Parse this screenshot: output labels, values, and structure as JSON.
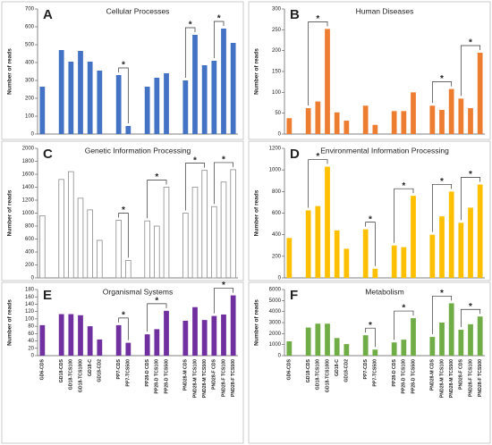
{
  "chart_data": [
    {
      "type": "bar",
      "label": "A",
      "title": "Cellular Processes",
      "y_label": "Number of reads",
      "color": "#4472c4",
      "values": [
        265,
        null,
        470,
        405,
        465,
        405,
        355,
        null,
        330,
        45,
        null,
        265,
        315,
        340,
        null,
        300,
        555,
        385,
        410,
        590,
        510
      ],
      "ylim": [
        0,
        700
      ],
      "yticks": [
        0,
        100,
        200,
        300,
        400,
        500,
        600,
        700
      ],
      "annotations": [
        {
          "text": "*",
          "from": 8,
          "to": 9
        },
        {
          "text": "*",
          "from": 15,
          "to": 16
        },
        {
          "text": "*",
          "from": 18,
          "to": 19
        }
      ]
    },
    {
      "type": "bar",
      "label": "B",
      "title": "Human Diseases",
      "y_label": "Number of reads",
      "color": "#ed7d31",
      "values": [
        38,
        null,
        62,
        78,
        252,
        52,
        32,
        null,
        68,
        22,
        null,
        55,
        55,
        100,
        null,
        68,
        58,
        108,
        85,
        62,
        195
      ],
      "ylim": [
        0,
        300
      ],
      "yticks": [
        0,
        50,
        100,
        150,
        200,
        250,
        300
      ],
      "annotations": [
        {
          "text": "*",
          "from": 2,
          "to": 4
        },
        {
          "text": "*",
          "from": 15,
          "to": 17
        },
        {
          "text": "*",
          "from": 18,
          "to": 20
        }
      ]
    },
    {
      "type": "bar",
      "label": "C",
      "title": "Genetic Information Processing",
      "y_label": "Number of reads",
      "color": "#ffffff",
      "edgecolor": "#8c8c8c",
      "values": [
        960,
        null,
        1520,
        1640,
        1230,
        1050,
        580,
        null,
        890,
        270,
        null,
        880,
        800,
        1400,
        null,
        1000,
        1400,
        1660,
        1100,
        1480,
        1670
      ],
      "ylim": [
        0,
        2000
      ],
      "yticks": [
        0,
        200,
        400,
        600,
        800,
        1000,
        1200,
        1400,
        1600,
        1800,
        2000
      ],
      "annotations": [
        {
          "text": "*",
          "from": 8,
          "to": 9
        },
        {
          "text": "*",
          "from": 11,
          "to": 13
        },
        {
          "text": "*",
          "from": 15,
          "to": 17
        },
        {
          "text": "*",
          "from": 18,
          "to": 20
        }
      ]
    },
    {
      "type": "bar",
      "label": "D",
      "title": "Environmental Information Processing",
      "y_label": "Number of reads",
      "color": "#ffc000",
      "values": [
        370,
        null,
        625,
        665,
        1030,
        440,
        270,
        null,
        450,
        85,
        null,
        300,
        285,
        760,
        null,
        400,
        570,
        800,
        510,
        650,
        865
      ],
      "ylim": [
        0,
        1200
      ],
      "yticks": [
        0,
        200,
        400,
        600,
        800,
        1000,
        1200
      ],
      "annotations": [
        {
          "text": "*",
          "from": 2,
          "to": 4
        },
        {
          "text": "*",
          "from": 8,
          "to": 9
        },
        {
          "text": "*",
          "from": 11,
          "to": 13
        },
        {
          "text": "*",
          "from": 15,
          "to": 17
        },
        {
          "text": "*",
          "from": 18,
          "to": 20
        }
      ]
    },
    {
      "type": "bar",
      "label": "E",
      "title": "Organismal Systems",
      "y_label": "Number of reads",
      "color": "#7030a0",
      "categories": [
        "GD6-CDS",
        null,
        "GD18-CDS",
        "GD18-TCS100",
        "GD18-TCS1000",
        "GD18-C",
        "GD18-CD2",
        null,
        "PP7-CDS",
        "PP7-TCS500",
        null,
        "PP28-D CDS",
        "PP28-D TCS100",
        "PP28-D TCS500",
        null,
        "PND28-M CDS",
        "PND28-M TCS100",
        "PND28-M TCS500",
        "PND28-F CDS",
        "PND28-F TCS100",
        "PND28-F TCS500"
      ],
      "values": [
        83,
        null,
        113,
        113,
        110,
        80,
        44,
        null,
        83,
        35,
        null,
        58,
        72,
        122,
        null,
        95,
        132,
        97,
        108,
        112,
        164
      ],
      "ylim": [
        0,
        180
      ],
      "yticks": [
        0,
        20,
        40,
        60,
        80,
        100,
        120,
        140,
        160,
        180
      ],
      "annotations": [
        {
          "text": "*",
          "from": 8,
          "to": 9
        },
        {
          "text": "*",
          "from": 11,
          "to": 13
        },
        {
          "text": "*",
          "from": 18,
          "to": 20
        }
      ]
    },
    {
      "type": "bar",
      "label": "F",
      "title": "Metabolism",
      "y_label": "Number of reads",
      "color": "#70ad47",
      "categories": [
        "GD6-CDS",
        null,
        "GD18-CDS",
        "GD18-TCS100",
        "GD18-TCS1000",
        "GD18-C",
        "GD18-CD2",
        null,
        "PP7-CDS",
        "PP7-TCS500",
        null,
        "PP28-D CDS",
        "PP28-D TCS100",
        "PP28-D TCS500",
        null,
        "PND28-M CDS",
        "PND28-M TCS100",
        "PND28-M TCS500",
        "PND28-F CDS",
        "PND28-F TCS100",
        "PND28-F TCS500"
      ],
      "values": [
        1300,
        null,
        2550,
        2900,
        2900,
        1600,
        1050,
        null,
        1850,
        550,
        null,
        1200,
        1450,
        3400,
        null,
        1700,
        3000,
        4750,
        2350,
        2850,
        3550
      ],
      "ylim": [
        0,
        6000
      ],
      "yticks": [
        0,
        1000,
        2000,
        3000,
        4000,
        5000,
        6000
      ],
      "annotations": [
        {
          "text": "*",
          "from": 8,
          "to": 9
        },
        {
          "text": "*",
          "from": 11,
          "to": 13
        },
        {
          "text": "*",
          "from": 15,
          "to": 17
        },
        {
          "text": "*",
          "from": 18,
          "to": 20
        }
      ]
    }
  ]
}
